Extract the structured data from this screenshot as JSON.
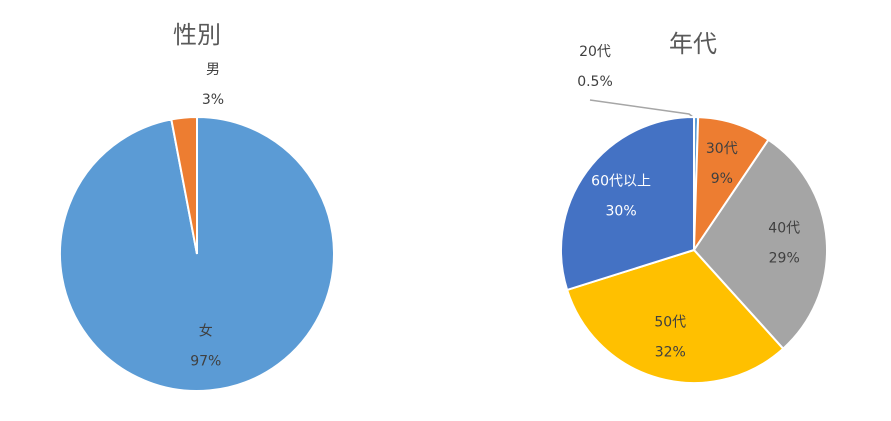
{
  "chart_data": [
    {
      "type": "pie",
      "title": "性別",
      "categories": [
        "女",
        "男"
      ],
      "values": [
        97,
        3
      ],
      "value_labels": [
        "97%",
        "3%"
      ],
      "colors": [
        "#5b9bd5",
        "#ed7d31"
      ]
    },
    {
      "type": "pie",
      "title": "年代",
      "categories": [
        "20代",
        "30代",
        "40代",
        "50代",
        "60代以上"
      ],
      "values": [
        0.5,
        9,
        29,
        32,
        30
      ],
      "value_labels": [
        "0.5%",
        "9%",
        "29%",
        "32%",
        "30%"
      ],
      "colors": [
        "#5b9bd5",
        "#ed7d31",
        "#a5a5a5",
        "#ffc000",
        "#4472c4"
      ]
    }
  ]
}
